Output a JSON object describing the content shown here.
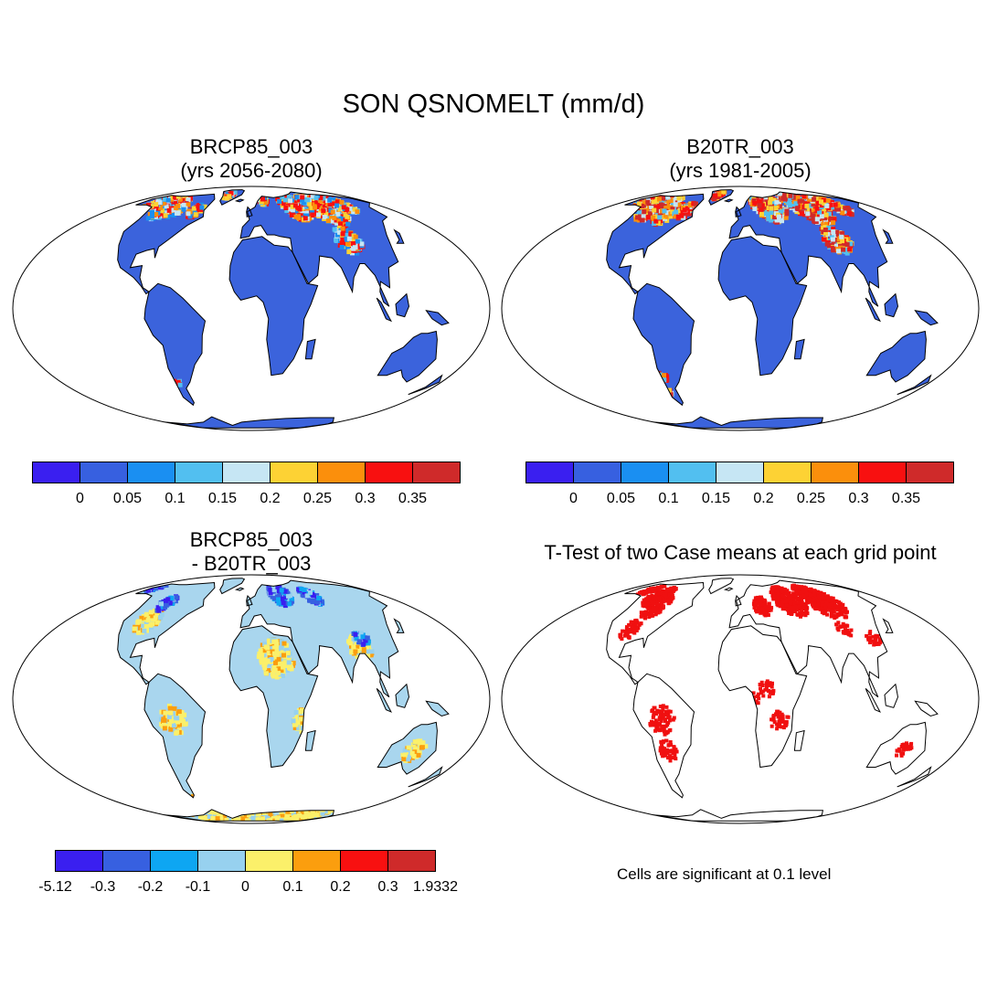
{
  "title": "SON QSNOMELT (mm/d)",
  "panels": {
    "future": {
      "line1": "BRCP85_003",
      "line2": "(yrs 2056-2080)"
    },
    "historical": {
      "line1": "B20TR_003",
      "line2": "(yrs 1981-2005)"
    },
    "difference": {
      "line1": "BRCP85_003",
      "line2": "- B20TR_003"
    },
    "ttest": {
      "line1": "T-Test of two Case means at each grid point",
      "note": "Cells are significant at 0.1 level"
    }
  },
  "colorbars": {
    "absolute": {
      "colors": [
        "#3a1ff0",
        "#3760e0",
        "#1a8ff2",
        "#52bff0",
        "#c6e6f4",
        "#fdd234",
        "#fb8f0c",
        "#f81010",
        "#cf2a2a"
      ],
      "labels": [
        "0",
        "0.05",
        "0.1",
        "0.15",
        "0.2",
        "0.25",
        "0.3",
        "0.35"
      ]
    },
    "difference": {
      "colors": [
        "#3a1ff0",
        "#3760e0",
        "#0ea6f2",
        "#97d1ef",
        "#fbf06a",
        "#fb9e0e",
        "#f81010",
        "#cf2a2a"
      ],
      "labels": [
        "-5.12",
        "-0.3",
        "-0.2",
        "-0.1",
        "0",
        "0.1",
        "0.2",
        "0.3",
        "1.9332"
      ]
    }
  },
  "map_colors": {
    "ocean": "#ffffff",
    "land_base": "#3b63dc",
    "difference_land": "#a9d6ee",
    "significant": "#f01010"
  }
}
